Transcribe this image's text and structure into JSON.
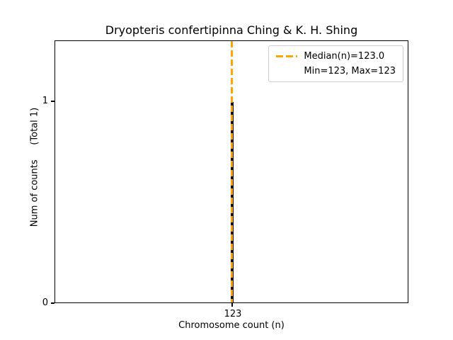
{
  "title": "Dryopteris confertipinna Ching & K. H. Shing",
  "axes": {
    "x_label": "Chromosome count (n)",
    "y_label": "Num of counts     (Total 1)",
    "x_ticks": [
      "123"
    ],
    "y_ticks": [
      "0",
      "1"
    ]
  },
  "legend": {
    "median_label": "Median(n)=123.0",
    "minmax_label": "Min=123, Max=123"
  },
  "colors": {
    "median_line": "#FFA500",
    "bar": "#111111"
  },
  "chart_data": {
    "type": "bar",
    "title": "Dryopteris confertipinna Ching & K. H. Shing",
    "xlabel": "Chromosome count (n)",
    "ylabel": "Num of counts (Total 1)",
    "categories": [
      123
    ],
    "values": [
      1
    ],
    "total_counts": 1,
    "median": 123.0,
    "min": 123,
    "max": 123,
    "ylim": [
      0,
      1.3
    ],
    "y_tick_values": [
      0,
      1
    ],
    "grid": false,
    "legend_position": "upper right",
    "legend_entries": [
      "Median(n)=123.0",
      "Min=123, Max=123"
    ],
    "median_line_style": "dashed"
  }
}
